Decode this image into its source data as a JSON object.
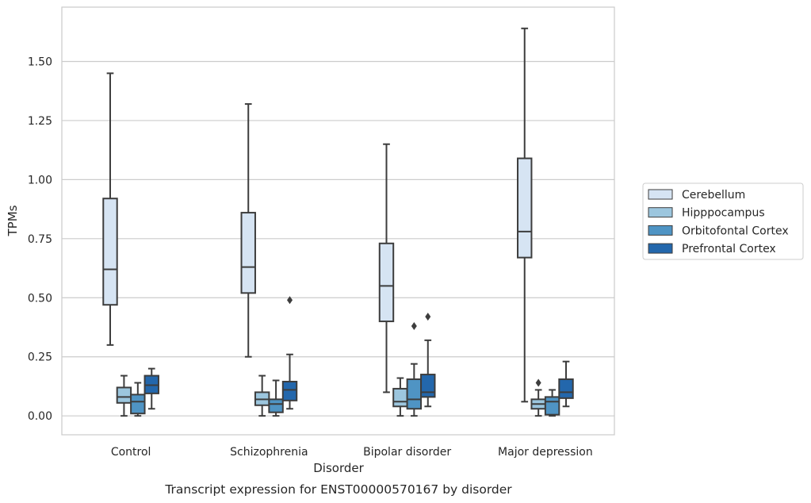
{
  "chart_data": {
    "type": "box",
    "xlabel": "Disorder",
    "ylabel": "TPMs",
    "caption": "Transcript expression for ENST00000570167 by disorder",
    "ylim": [
      -0.08,
      1.73
    ],
    "yticks": [
      0.0,
      0.25,
      0.5,
      0.75,
      1.0,
      1.25,
      1.5
    ],
    "ytick_labels": [
      "0.00",
      "0.25",
      "0.50",
      "0.75",
      "1.00",
      "1.25",
      "1.50"
    ],
    "grid": "horizontal",
    "legend_position": "right",
    "categories": [
      "Control",
      "Schizophrenia",
      "Bipolar disorder",
      "Major depression"
    ],
    "series": [
      {
        "name": "Cerebellum",
        "color": "#d6e4f3",
        "boxes": [
          {
            "whisker_low": 0.3,
            "q1": 0.47,
            "median": 0.62,
            "q3": 0.92,
            "whisker_high": 1.45,
            "outliers": []
          },
          {
            "whisker_low": 0.25,
            "q1": 0.52,
            "median": 0.63,
            "q3": 0.86,
            "whisker_high": 1.32,
            "outliers": []
          },
          {
            "whisker_low": 0.1,
            "q1": 0.4,
            "median": 0.55,
            "q3": 0.73,
            "whisker_high": 1.15,
            "outliers": []
          },
          {
            "whisker_low": 0.06,
            "q1": 0.67,
            "median": 0.78,
            "q3": 1.09,
            "whisker_high": 1.64,
            "outliers": []
          }
        ]
      },
      {
        "name": "Hipppocampus",
        "color": "#9cc6de",
        "boxes": [
          {
            "whisker_low": 0.0,
            "q1": 0.055,
            "median": 0.08,
            "q3": 0.12,
            "whisker_high": 0.17,
            "outliers": []
          },
          {
            "whisker_low": 0.0,
            "q1": 0.045,
            "median": 0.07,
            "q3": 0.1,
            "whisker_high": 0.17,
            "outliers": []
          },
          {
            "whisker_low": 0.0,
            "q1": 0.04,
            "median": 0.06,
            "q3": 0.115,
            "whisker_high": 0.16,
            "outliers": []
          },
          {
            "whisker_low": 0.0,
            "q1": 0.03,
            "median": 0.05,
            "q3": 0.07,
            "whisker_high": 0.11,
            "outliers": [
              0.14
            ]
          }
        ]
      },
      {
        "name": "Orbitofontal Cortex",
        "color": "#4f94c4",
        "boxes": [
          {
            "whisker_low": 0.0,
            "q1": 0.01,
            "median": 0.06,
            "q3": 0.09,
            "whisker_high": 0.14,
            "outliers": []
          },
          {
            "whisker_low": 0.0,
            "q1": 0.015,
            "median": 0.05,
            "q3": 0.07,
            "whisker_high": 0.15,
            "outliers": []
          },
          {
            "whisker_low": 0.0,
            "q1": 0.03,
            "median": 0.07,
            "q3": 0.155,
            "whisker_high": 0.22,
            "outliers": [
              0.38
            ]
          },
          {
            "whisker_low": 0.0,
            "q1": 0.005,
            "median": 0.06,
            "q3": 0.08,
            "whisker_high": 0.11,
            "outliers": []
          }
        ]
      },
      {
        "name": "Prefrontal Cortex",
        "color": "#2367ac",
        "boxes": [
          {
            "whisker_low": 0.03,
            "q1": 0.095,
            "median": 0.13,
            "q3": 0.17,
            "whisker_high": 0.2,
            "outliers": []
          },
          {
            "whisker_low": 0.03,
            "q1": 0.065,
            "median": 0.11,
            "q3": 0.145,
            "whisker_high": 0.26,
            "outliers": [
              0.49
            ]
          },
          {
            "whisker_low": 0.04,
            "q1": 0.08,
            "median": 0.1,
            "q3": 0.175,
            "whisker_high": 0.32,
            "outliers": [
              0.42
            ]
          },
          {
            "whisker_low": 0.04,
            "q1": 0.075,
            "median": 0.1,
            "q3": 0.155,
            "whisker_high": 0.23,
            "outliers": []
          }
        ]
      }
    ]
  }
}
